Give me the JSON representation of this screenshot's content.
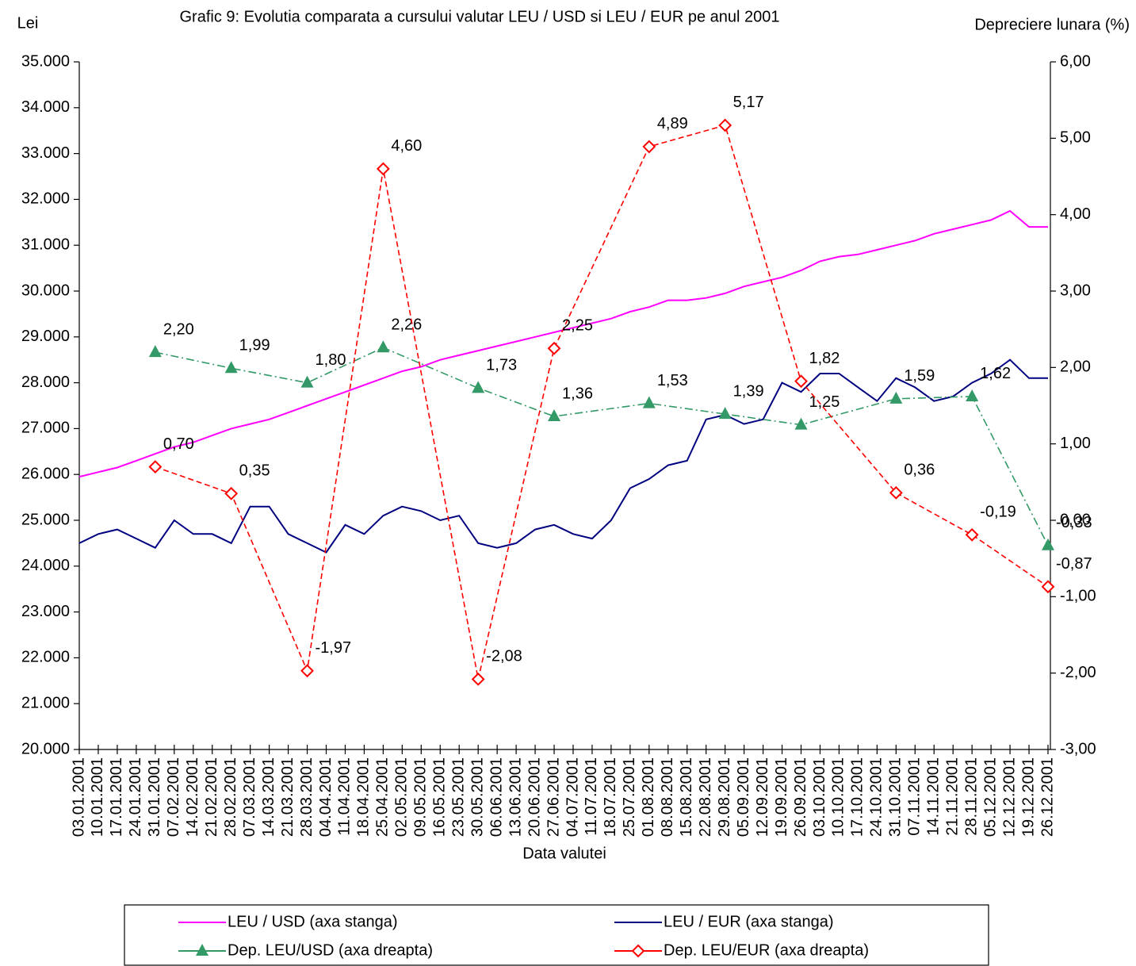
{
  "chart_data": {
    "type": "line",
    "title": "Grafic 9: Evolutia comparata a cursului valutar LEU / USD si LEU / EUR pe anul 2001",
    "y_label": "Lei",
    "y2_label": "Depreciere lunara (%)",
    "x_label": "Data valutei",
    "categories": [
      "03.01.2001",
      "10.01.2001",
      "17.01.2001",
      "24.01.2001",
      "31.01.2001",
      "07.02.2001",
      "14.02.2001",
      "21.02.2001",
      "28.02.2001",
      "07.03.2001",
      "14.03.2001",
      "21.03.2001",
      "28.03.2001",
      "04.04.2001",
      "11.04.2001",
      "18.04.2001",
      "25.04.2001",
      "02.05.2001",
      "09.05.2001",
      "16.05.2001",
      "23.05.2001",
      "30.05.2001",
      "06.06.2001",
      "13.06.2001",
      "20.06.2001",
      "27.06.2001",
      "04.07.2001",
      "11.07.2001",
      "18.07.2001",
      "25.07.2001",
      "01.08.2001",
      "08.08.2001",
      "15.08.2001",
      "22.08.2001",
      "29.08.2001",
      "05.09.2001",
      "12.09.2001",
      "19.09.2001",
      "26.09.2001",
      "03.10.2001",
      "10.10.2001",
      "17.10.2001",
      "24.10.2001",
      "31.10.2001",
      "07.11.2001",
      "14.11.2001",
      "21.11.2001",
      "28.11.2001",
      "05.12.2001",
      "12.12.2001",
      "19.12.2001",
      "26.12.2001"
    ],
    "ylim": [
      20000,
      35000
    ],
    "yticks": [
      {
        "value": 20000,
        "label": "20.000"
      },
      {
        "value": 21000,
        "label": "21.000"
      },
      {
        "value": 22000,
        "label": "22.000"
      },
      {
        "value": 23000,
        "label": "23.000"
      },
      {
        "value": 24000,
        "label": "24.000"
      },
      {
        "value": 25000,
        "label": "25.000"
      },
      {
        "value": 26000,
        "label": "26.000"
      },
      {
        "value": 27000,
        "label": "27.000"
      },
      {
        "value": 28000,
        "label": "28.000"
      },
      {
        "value": 29000,
        "label": "29.000"
      },
      {
        "value": 30000,
        "label": "30.000"
      },
      {
        "value": 31000,
        "label": "31.000"
      },
      {
        "value": 32000,
        "label": "32.000"
      },
      {
        "value": 33000,
        "label": "33.000"
      },
      {
        "value": 34000,
        "label": "34.000"
      },
      {
        "value": 35000,
        "label": "35.000"
      }
    ],
    "y2lim": [
      -3,
      6
    ],
    "y2ticks": [
      {
        "value": -3,
        "label": "-3,00"
      },
      {
        "value": -2,
        "label": "-2,00"
      },
      {
        "value": -1,
        "label": "-1,00"
      },
      {
        "value": 0,
        "label": "0,00"
      },
      {
        "value": 1,
        "label": "1,00"
      },
      {
        "value": 2,
        "label": "2,00"
      },
      {
        "value": 3,
        "label": "3,00"
      },
      {
        "value": 4,
        "label": "4,00"
      },
      {
        "value": 5,
        "label": "5,00"
      },
      {
        "value": 6,
        "label": "6,00"
      }
    ],
    "series": [
      {
        "name": "LEU / USD (axa stanga)",
        "color": "#ff00ff",
        "values": [
          25950,
          26050,
          26150,
          26300,
          26450,
          26600,
          26700,
          26850,
          27000,
          27100,
          27200,
          27350,
          27500,
          27650,
          27800,
          27950,
          28100,
          28250,
          28350,
          28500,
          28600,
          28700,
          28800,
          28900,
          29000,
          29100,
          29200,
          29300,
          29400,
          29550,
          29650,
          29800,
          29800,
          29850,
          29950,
          30100,
          30200,
          30300,
          30450,
          30650,
          30750,
          30800,
          30900,
          31000,
          31100,
          31250,
          31350,
          31450,
          31550,
          31750,
          31400,
          31400
        ]
      },
      {
        "name": "LEU / EUR  (axa stanga)",
        "color": "#000080",
        "values": [
          24500,
          24700,
          24800,
          24600,
          24400,
          25000,
          24700,
          24700,
          24500,
          25300,
          25300,
          24700,
          24500,
          24300,
          24900,
          24700,
          25100,
          25300,
          25200,
          25000,
          25100,
          24500,
          24400,
          24500,
          24800,
          24900,
          24700,
          24600,
          25000,
          25700,
          25900,
          26200,
          26300,
          27200,
          27300,
          27100,
          27200,
          28000,
          27800,
          28200,
          28200,
          27900,
          27600,
          28100,
          27900,
          27600,
          27700,
          28000,
          28200,
          28500,
          28100,
          28100
        ]
      },
      {
        "name": "Dep. LEU/USD   (axa dreapta)",
        "color": "#339966",
        "axis": "y2",
        "marker": "triangle",
        "x": [
          "31.01.2001",
          "28.02.2001",
          "28.03.2001",
          "25.04.2001",
          "30.05.2001",
          "27.06.2001",
          "01.08.2001",
          "29.08.2001",
          "26.09.2001",
          "31.10.2001",
          "28.11.2001",
          "26.12.2001"
        ],
        "values": [
          2.2,
          1.99,
          1.8,
          2.26,
          1.73,
          1.36,
          1.53,
          1.39,
          1.25,
          1.59,
          1.62,
          -0.33
        ],
        "value_labels": [
          "2,20",
          "1,99",
          "1,80",
          "2,26",
          "1,73",
          "1,36",
          "1,53",
          "1,39",
          "1,25",
          "1,59",
          "1,62",
          "-0,33"
        ]
      },
      {
        "name": "Dep. LEU/EUR   (axa dreapta)",
        "color": "#ff0000",
        "axis": "y2",
        "marker": "diamond",
        "x": [
          "31.01.2001",
          "28.02.2001",
          "28.03.2001",
          "25.04.2001",
          "30.05.2001",
          "27.06.2001",
          "01.08.2001",
          "29.08.2001",
          "26.09.2001",
          "31.10.2001",
          "28.11.2001",
          "26.12.2001"
        ],
        "values": [
          0.7,
          0.35,
          -1.97,
          4.6,
          -2.08,
          2.25,
          4.89,
          5.17,
          1.82,
          0.36,
          -0.19,
          -0.87
        ],
        "value_labels": [
          "0,70",
          "0,35",
          "-1,97",
          "4,60",
          "-2,08",
          "2,25",
          "4,89",
          "5,17",
          "1,82",
          "0,36",
          "-0,19",
          "-0,87"
        ]
      }
    ]
  }
}
